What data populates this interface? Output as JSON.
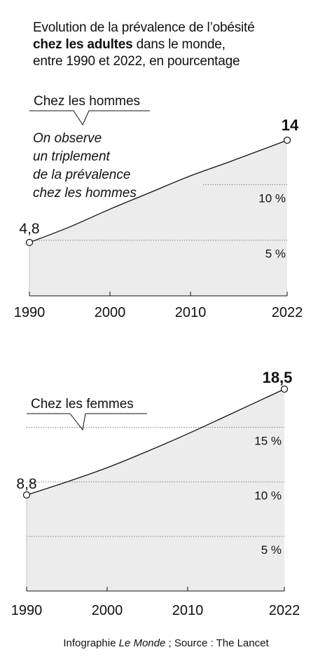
{
  "title": {
    "line1": "Evolution de la prévalence de l’obésité",
    "line2_bold": "chez les adultes",
    "line2_rest": " dans le monde,",
    "line3": "entre 1990 et 2022, en pourcentage"
  },
  "chart_data": [
    {
      "type": "area",
      "title": "Chez les hommes",
      "annotation": [
        "On observe",
        "un triplement",
        "de la prévalence",
        "chez les hommes"
      ],
      "x": [
        1990,
        1995,
        2000,
        2005,
        2010,
        2015,
        2022
      ],
      "y": [
        4.8,
        6.2,
        7.8,
        9.3,
        10.8,
        12.1,
        14
      ],
      "x_ticks": [
        "1990",
        "2000",
        "2010",
        "2022"
      ],
      "y_gridlines": [
        5,
        10
      ],
      "y_gridline_labels": [
        "5 %",
        "10 %"
      ],
      "ylim": [
        0,
        14
      ],
      "start_label": "4,8",
      "end_label": "14",
      "grid": true
    },
    {
      "type": "area",
      "title": "Chez les femmes",
      "x": [
        1990,
        1995,
        2000,
        2005,
        2010,
        2015,
        2022
      ],
      "y": [
        8.8,
        10.0,
        11.3,
        12.8,
        14.4,
        16.1,
        18.5
      ],
      "x_ticks": [
        "1990",
        "2000",
        "2010",
        "2022"
      ],
      "y_gridlines": [
        5,
        10,
        15
      ],
      "y_gridline_labels": [
        "5 %",
        "10 %",
        "15 %"
      ],
      "ylim": [
        0,
        18.5
      ],
      "start_label": "8,8",
      "end_label": "18,5",
      "grid": true
    }
  ],
  "source": {
    "prefix": "Infographie ",
    "brand": "Le Monde",
    "suffix": " ; Source : The Lancet"
  },
  "colors": {
    "area_fill": "#ececec",
    "line": "#111111",
    "grid": "#666666"
  }
}
